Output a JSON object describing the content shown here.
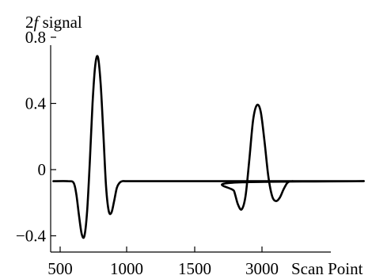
{
  "chart_data": {
    "type": "line",
    "title": "",
    "ylabel_prefix": "2",
    "ylabel_italic": "f",
    "ylabel_suffix": " signal",
    "xlabel": "Scan Point",
    "x_tick_labels": [
      "500",
      "1000",
      "1500",
      "3000"
    ],
    "y_ticks": [
      0.8,
      0.4,
      0,
      -0.4
    ],
    "y_tick_labels": [
      "0.8",
      "0.4",
      "0",
      "−0.4"
    ],
    "xlim": [
      450,
      3800
    ],
    "ylim": [
      -0.5,
      0.82
    ],
    "grid": false,
    "legend": "none",
    "series": [
      {
        "x": [
          450,
          560,
          600,
          620,
          640,
          660,
          680,
          700,
          720,
          740,
          760,
          780,
          800,
          820,
          840,
          860,
          880,
          900,
          920,
          940,
          960,
          1000,
          1200,
          1400,
          1600,
          1800,
          2000,
          2200,
          2400,
          2600,
          2700,
          2750,
          2780,
          2810,
          2840,
          2870,
          2900,
          2930,
          2960,
          2990,
          3020,
          3050,
          3080,
          3110,
          3140,
          3170,
          3200,
          3230,
          3260,
          3300,
          3400,
          3500,
          3600,
          3700,
          3800
        ],
        "y": [
          -0.07,
          -0.07,
          -0.08,
          -0.15,
          -0.28,
          -0.39,
          -0.4,
          -0.25,
          0.05,
          0.4,
          0.63,
          0.68,
          0.52,
          0.22,
          -0.1,
          -0.25,
          -0.26,
          -0.19,
          -0.11,
          -0.08,
          -0.07,
          -0.07,
          -0.07,
          -0.07,
          -0.07,
          -0.07,
          -0.07,
          -0.07,
          -0.07,
          -0.07,
          -0.07,
          -0.08,
          -0.13,
          -0.21,
          -0.24,
          -0.16,
          0.06,
          0.3,
          0.39,
          0.35,
          0.17,
          -0.04,
          -0.16,
          -0.19,
          -0.17,
          -0.12,
          -0.08,
          -0.07,
          -0.07,
          -0.07,
          -0.07,
          -0.07,
          -0.07,
          -0.07,
          -0.07
        ]
      }
    ]
  }
}
